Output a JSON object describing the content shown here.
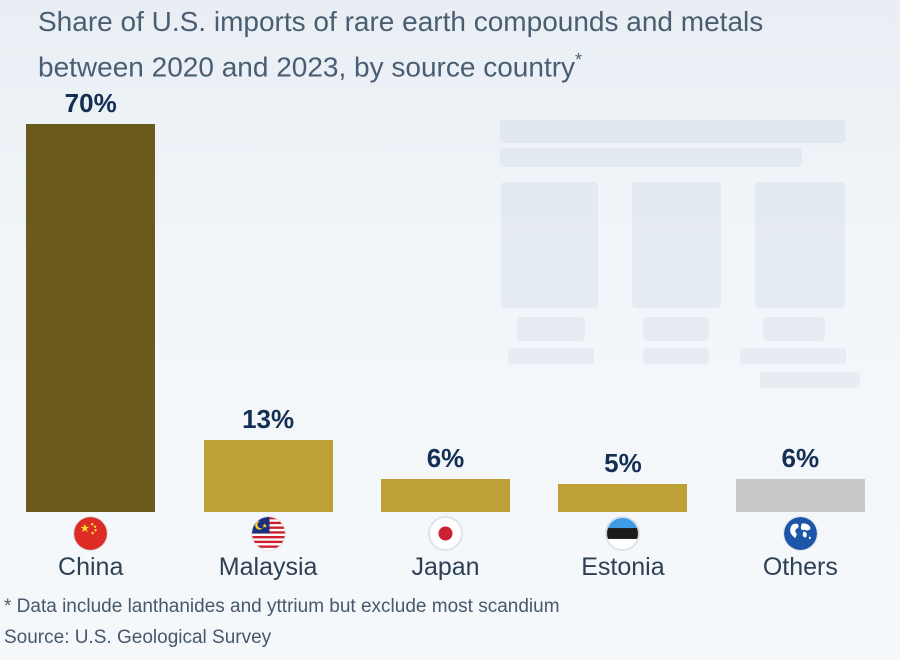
{
  "title": {
    "text": "Share of U.S. imports of rare earth compounds and metals between 2020 and 2023, by source country",
    "footnote_marker": "*"
  },
  "chart_data": {
    "type": "bar",
    "title": "Share of U.S. imports of rare earth compounds and metals between 2020 and 2023, by source country*",
    "unit": "%",
    "ylim": [
      0,
      100
    ],
    "grid": false,
    "legend": false,
    "categories": [
      "China",
      "Malaysia",
      "Japan",
      "Estonia",
      "Others"
    ],
    "values": [
      70,
      13,
      6,
      5,
      6
    ],
    "points": [
      {
        "country": "China",
        "value": 70,
        "value_label": "70%",
        "flag_icon": "china-flag-icon",
        "bar_color": "#6b5a1d"
      },
      {
        "country": "Malaysia",
        "value": 13,
        "value_label": "13%",
        "flag_icon": "malaysia-flag-icon",
        "bar_color": "#bda137"
      },
      {
        "country": "Japan",
        "value": 6,
        "value_label": "6%",
        "flag_icon": "japan-flag-icon",
        "bar_color": "#bda137"
      },
      {
        "country": "Estonia",
        "value": 5,
        "value_label": "5%",
        "flag_icon": "estonia-flag-icon",
        "bar_color": "#bda137"
      },
      {
        "country": "Others",
        "value": 6,
        "value_label": "6%",
        "flag_icon": "globe-icon",
        "bar_color": "#c7c8ca"
      }
    ]
  },
  "footnote": "* Data include lanthanides and yttrium but exclude most scandium",
  "source": "Source: U.S. Geological Survey",
  "colors": {
    "background": "#f2f6fa",
    "title_text": "#4a5e73",
    "value_label": "#132f54",
    "category_text": "#2e4154",
    "china_bar": "#6b5a1d",
    "gold_bar": "#bda137",
    "others_bar": "#c7c8ca",
    "footnote_text": "#46586a"
  }
}
